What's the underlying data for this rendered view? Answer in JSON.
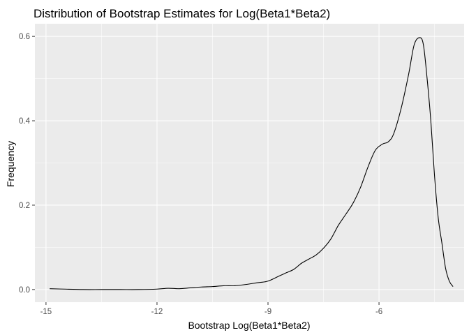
{
  "chart_data": {
    "type": "line",
    "title": "Distribution of Bootstrap Estimates for  Log(Beta1*Beta2)",
    "xlabel": "Bootstrap Log(Beta1*Beta2)",
    "ylabel": "Frequency",
    "xlim": [
      -15.3,
      -3.7
    ],
    "ylim": [
      -0.03,
      0.63
    ],
    "x_ticks": [
      -15,
      -12,
      -9,
      -6
    ],
    "x_tick_labels": [
      "-15",
      "-12",
      "-9",
      "-6"
    ],
    "x_minor_ticks": [
      -13.5,
      -10.5,
      -7.5,
      -4.5
    ],
    "y_ticks": [
      0.0,
      0.2,
      0.4,
      0.6
    ],
    "y_tick_labels": [
      "0.0",
      "0.2",
      "0.4",
      "0.6"
    ],
    "y_minor_ticks": [
      0.1,
      0.3,
      0.5
    ],
    "grid": true,
    "panel_background": "#ebebeb",
    "line_color": "#000000",
    "series": [
      {
        "x": [
          -14.9,
          -14.5,
          -14.0,
          -13.5,
          -13.0,
          -12.5,
          -12.0,
          -11.7,
          -11.4,
          -11.1,
          -10.8,
          -10.5,
          -10.2,
          -9.9,
          -9.6,
          -9.3,
          -9.0,
          -8.7,
          -8.5,
          -8.3,
          -8.1,
          -7.9,
          -7.7,
          -7.5,
          -7.3,
          -7.1,
          -6.9,
          -6.7,
          -6.5,
          -6.3,
          -6.1,
          -5.9,
          -5.75,
          -5.6,
          -5.4,
          -5.2,
          -5.05,
          -4.9,
          -4.8,
          -4.7,
          -4.6,
          -4.5,
          -4.4,
          -4.3,
          -4.2,
          -4.1,
          -4.0
        ],
        "y": [
          0.002,
          0.001,
          0.0,
          0.0,
          0.0,
          0.0,
          0.001,
          0.003,
          0.002,
          0.004,
          0.006,
          0.007,
          0.009,
          0.009,
          0.012,
          0.016,
          0.02,
          0.032,
          0.04,
          0.048,
          0.062,
          0.072,
          0.082,
          0.098,
          0.12,
          0.152,
          0.178,
          0.205,
          0.242,
          0.29,
          0.33,
          0.345,
          0.35,
          0.37,
          0.43,
          0.51,
          0.58,
          0.597,
          0.58,
          0.5,
          0.4,
          0.27,
          0.17,
          0.11,
          0.05,
          0.02,
          0.007
        ]
      }
    ]
  }
}
